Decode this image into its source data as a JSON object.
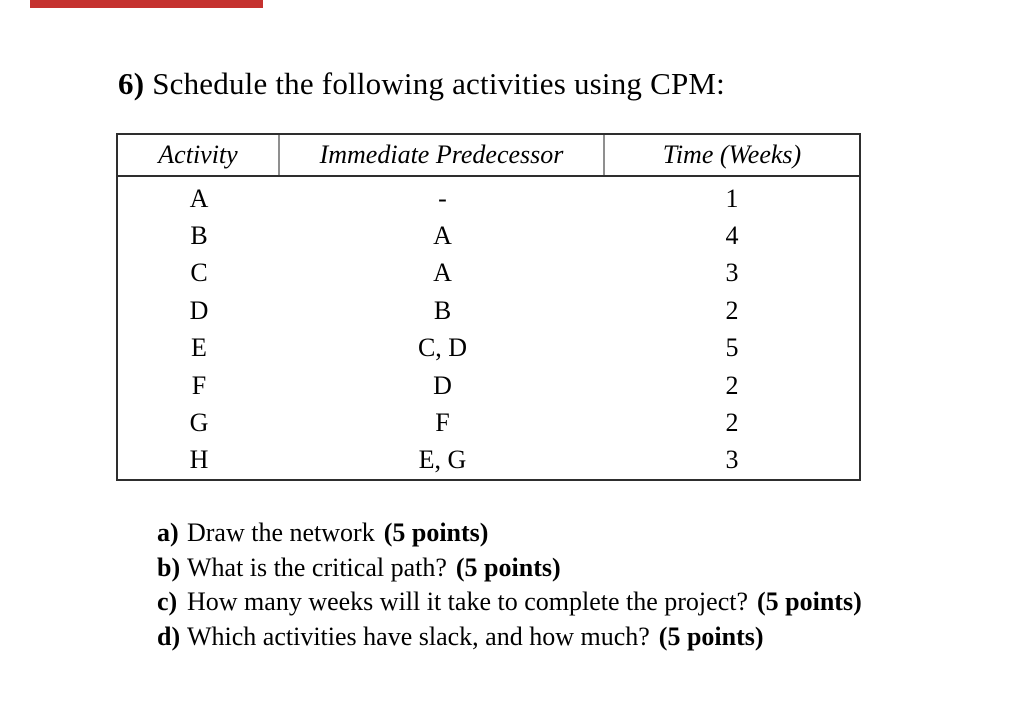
{
  "page": {
    "background_color": "#ffffff",
    "red_bar_color": "#c5322f",
    "text_color": "#000000"
  },
  "title": {
    "number": "6)",
    "text": "Schedule the following activities using CPM:"
  },
  "table": {
    "headers": [
      "Activity",
      "Immediate Predecessor",
      "Time (Weeks)"
    ],
    "rows": [
      {
        "activity": "A",
        "predecessor": "-",
        "time": "1"
      },
      {
        "activity": "B",
        "predecessor": "A",
        "time": "4"
      },
      {
        "activity": "C",
        "predecessor": "A",
        "time": "3"
      },
      {
        "activity": "D",
        "predecessor": "B",
        "time": "2"
      },
      {
        "activity": "E",
        "predecessor": "C, D",
        "time": "5"
      },
      {
        "activity": "F",
        "predecessor": "D",
        "time": "2"
      },
      {
        "activity": "G",
        "predecessor": "F",
        "time": "2"
      },
      {
        "activity": "H",
        "predecessor": "E, G",
        "time": "3"
      }
    ]
  },
  "questions": [
    {
      "label": "a)",
      "text": "Draw the network",
      "points": "(5 points)"
    },
    {
      "label": "b)",
      "text": "What is the critical path?",
      "points": "(5 points)"
    },
    {
      "label": "c)",
      "text": "How many weeks will it take to complete the project?",
      "points": "(5 points)"
    },
    {
      "label": "d)",
      "text": "Which activities have slack, and how much?",
      "points": "(5 points)"
    }
  ]
}
